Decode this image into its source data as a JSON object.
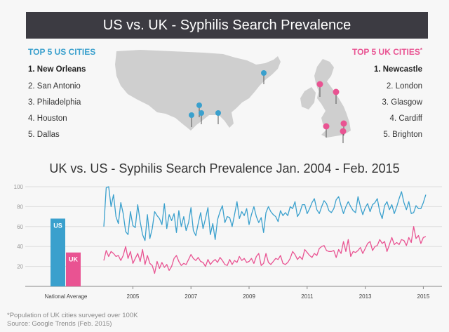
{
  "header": {
    "title": "US vs. UK - Syphilis Search Prevalence"
  },
  "us_cities": {
    "heading": "TOP 5 US CITIES",
    "items": [
      "1. New Orleans",
      "2. San Antonio",
      "3. Philadelphia",
      "4. Houston",
      "5. Dallas"
    ]
  },
  "uk_cities": {
    "heading": "TOP 5 UK CITIES",
    "star": "*",
    "items": [
      "1. Newcastle",
      "2. London",
      "3. Glasgow",
      "4. Cardiff",
      "5. Brighton"
    ]
  },
  "colors": {
    "us": "#3aa0cd",
    "uk": "#e95392",
    "dark": "#3c3b42",
    "map": "#cfcfcf"
  },
  "footnotes": {
    "note": "*Population of UK cities surveyed over 100K",
    "source": "Source: Google Trends (Feb. 2015)"
  },
  "chart_data": {
    "type": "line",
    "title": "UK vs. US - Syphilis Search Prevalence Jan. 2004 - Feb. 2015",
    "ylim": [
      0,
      100
    ],
    "yticks": [
      20,
      40,
      60,
      80,
      100
    ],
    "xticks": [
      "2005",
      "2007",
      "2009",
      "2011",
      "2013",
      "2015"
    ],
    "national_average": {
      "label": "National Average",
      "categories": [
        "US",
        "UK"
      ],
      "values": [
        68,
        34
      ]
    },
    "series": [
      {
        "name": "US",
        "start": "2004-01",
        "step": "month",
        "values": [
          60,
          99,
          100,
          80,
          92,
          70,
          63,
          84,
          73,
          55,
          52,
          75,
          61,
          59,
          82,
          65,
          52,
          46,
          72,
          48,
          58,
          75,
          71,
          68,
          62,
          83,
          58,
          72,
          66,
          73,
          54,
          76,
          60,
          70,
          56,
          64,
          79,
          56,
          51,
          63,
          74,
          58,
          68,
          79,
          52,
          63,
          47,
          67,
          75,
          81,
          64,
          70,
          69,
          60,
          72,
          85,
          68,
          75,
          71,
          78,
          62,
          72,
          80,
          70,
          64,
          69,
          54,
          74,
          80,
          75,
          72,
          70,
          65,
          76,
          71,
          74,
          71,
          80,
          78,
          85,
          70,
          74,
          82,
          82,
          73,
          78,
          84,
          88,
          77,
          73,
          80,
          86,
          83,
          76,
          74,
          78,
          87,
          90,
          81,
          73,
          80,
          85,
          80,
          76,
          74,
          90,
          80,
          72,
          79,
          83,
          75,
          82,
          84,
          88,
          75,
          68,
          81,
          85,
          77,
          82,
          73,
          80,
          88,
          95,
          84,
          77,
          85,
          73,
          74,
          81,
          78,
          78,
          84,
          92
        ]
      },
      {
        "name": "UK",
        "start": "2004-01",
        "step": "month",
        "values": [
          26,
          36,
          30,
          35,
          33,
          30,
          31,
          26,
          31,
          40,
          28,
          35,
          23,
          28,
          33,
          25,
          37,
          22,
          31,
          23,
          21,
          13,
          25,
          18,
          24,
          19,
          22,
          16,
          20,
          28,
          31,
          25,
          21,
          23,
          22,
          27,
          32,
          28,
          26,
          29,
          25,
          24,
          20,
          27,
          22,
          25,
          27,
          24,
          29,
          26,
          22,
          21,
          27,
          22,
          26,
          24,
          30,
          26,
          28,
          24,
          25,
          28,
          23,
          30,
          33,
          21,
          23,
          33,
          24,
          22,
          25,
          28,
          27,
          31,
          23,
          22,
          24,
          28,
          35,
          32,
          27,
          30,
          27,
          37,
          34,
          31,
          29,
          33,
          31,
          38,
          40,
          41,
          36,
          35,
          35,
          36,
          29,
          37,
          33,
          45,
          35,
          47,
          30,
          35,
          34,
          36,
          39,
          33,
          38,
          43,
          45,
          36,
          40,
          41,
          47,
          43,
          45,
          35,
          42,
          49,
          42,
          44,
          42,
          47,
          46,
          41,
          49,
          44,
          60,
          48,
          51,
          43,
          49,
          50
        ]
      }
    ]
  }
}
